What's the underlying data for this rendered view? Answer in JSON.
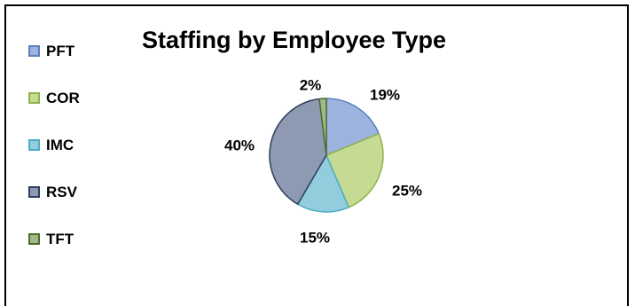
{
  "chart_data": {
    "type": "pie",
    "title": "Staffing by Employee Type",
    "categories": [
      "PFT",
      "COR",
      "IMC",
      "RSV",
      "TFT"
    ],
    "values": [
      19,
      25,
      15,
      40,
      2
    ],
    "data_labels": [
      "19%",
      "25%",
      "15%",
      "40%",
      "2%"
    ],
    "colors": [
      "#9BB3DD",
      "#C5DB93",
      "#93CDDD",
      "#8E9AB1",
      "#A3B88A"
    ],
    "border_colors": [
      "#5B7FBE",
      "#8FB24A",
      "#4BACC6",
      "#2E3E5C",
      "#4E6B2A"
    ],
    "legend_position": "left",
    "grid": false
  }
}
